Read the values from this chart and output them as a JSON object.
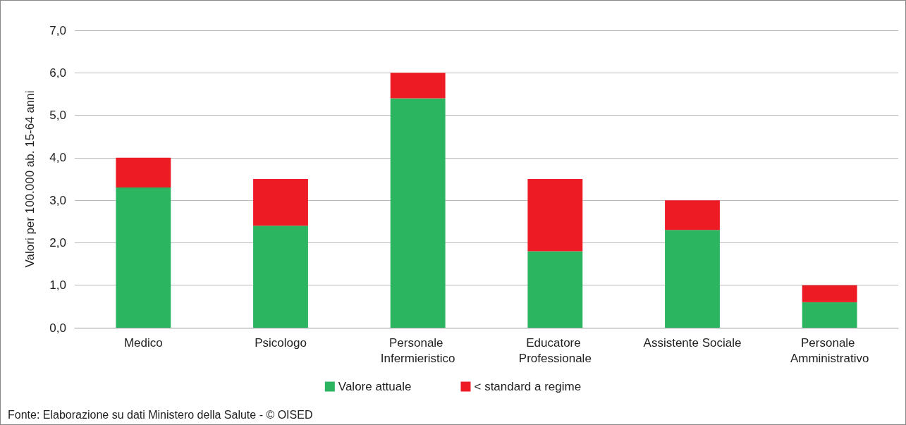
{
  "chart_data": {
    "type": "bar",
    "stacked": true,
    "ylabel": "Valori per 100.000 ab. 15-64 anni",
    "categories": [
      "Medico",
      "Psicologo",
      "Personale Infermieristico",
      "Educatore Professionale",
      "Assistente Sociale",
      "Personale Amministrativo"
    ],
    "series": [
      {
        "name": "Valore attuale",
        "color": "#2bb560",
        "values": [
          3.3,
          2.4,
          5.4,
          1.8,
          2.3,
          0.6
        ]
      },
      {
        "name": "< standard a regime",
        "color": "#ed1c24",
        "values": [
          0.7,
          1.1,
          0.6,
          1.7,
          0.7,
          0.4
        ]
      }
    ],
    "ylim": [
      0,
      7
    ],
    "yticks": [
      {
        "value": 0,
        "label": "0,0"
      },
      {
        "value": 1,
        "label": "1,0"
      },
      {
        "value": 2,
        "label": "2,0"
      },
      {
        "value": 3,
        "label": "3,0"
      },
      {
        "value": 4,
        "label": "4,0"
      },
      {
        "value": 5,
        "label": "5,0"
      },
      {
        "value": 6,
        "label": "6,0"
      },
      {
        "value": 7,
        "label": "7,0"
      }
    ],
    "grid": "y",
    "legend": "bottom",
    "annotations": [
      "Fonte: Elaborazione su dati Ministero della Salute - © OISED"
    ]
  }
}
